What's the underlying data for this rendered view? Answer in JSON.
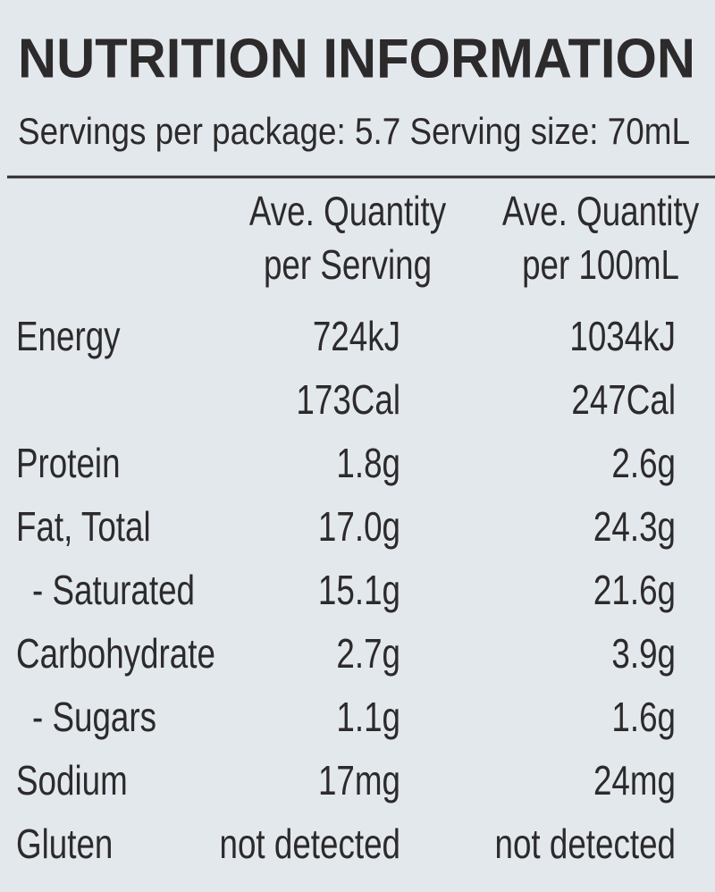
{
  "header": {
    "title": "NUTRITION INFORMATION",
    "subtitle": "Servings per package: 5.7 Serving size: 70mL"
  },
  "table": {
    "columns": [
      [
        "Ave. Quantity",
        "per Serving"
      ],
      [
        "Ave. Quantity",
        "per 100mL"
      ]
    ],
    "rows": [
      {
        "label": "Energy",
        "cells": [
          [
            "724kJ",
            "173Cal"
          ],
          [
            "1034kJ",
            "247Cal"
          ]
        ]
      },
      {
        "label": "Protein",
        "cells": [
          [
            "1.8g"
          ],
          [
            "2.6g"
          ]
        ]
      },
      {
        "label": "Fat, Total",
        "cells": [
          [
            "17.0g"
          ],
          [
            "24.3g"
          ]
        ]
      },
      {
        "label": "- Saturated",
        "cells": [
          [
            "15.1g"
          ],
          [
            "21.6g"
          ]
        ]
      },
      {
        "label": "Carbohydrate",
        "cells": [
          [
            "2.7g"
          ],
          [
            "3.9g"
          ]
        ]
      },
      {
        "label": "- Sugars",
        "cells": [
          [
            "1.1g"
          ],
          [
            "1.6g"
          ]
        ]
      },
      {
        "label": "Sodium",
        "cells": [
          [
            "17mg"
          ],
          [
            "24mg"
          ]
        ]
      },
      {
        "label": "Gluten",
        "cells": [
          [
            "not detected"
          ],
          [
            "not detected"
          ]
        ]
      }
    ]
  }
}
